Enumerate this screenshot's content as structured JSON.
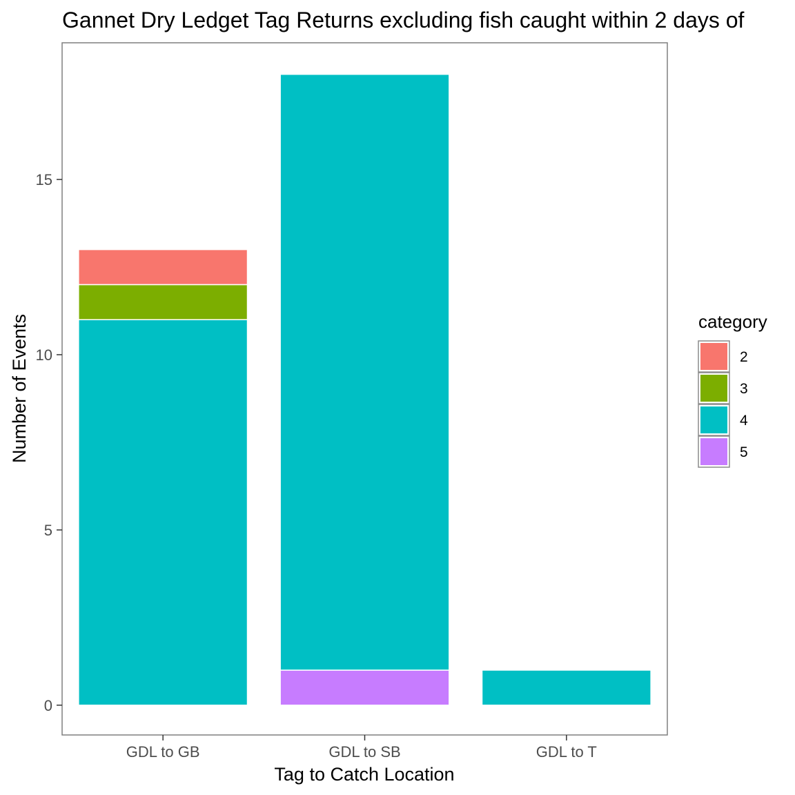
{
  "chart_data": {
    "type": "bar",
    "stacked": true,
    "title": "Gannet Dry Ledget Tag Returns excluding fish caught within 2 days of",
    "xlabel": "Tag to Catch Location",
    "ylabel": "Number of Events",
    "categories": [
      "GDL to GB",
      "GDL to SB",
      "GDL to T"
    ],
    "series": [
      {
        "name": "2",
        "color": "#F8766D",
        "values": [
          1,
          0,
          0
        ]
      },
      {
        "name": "3",
        "color": "#7CAE00",
        "values": [
          1,
          0,
          0
        ]
      },
      {
        "name": "4",
        "color": "#00BFC4",
        "values": [
          11,
          17,
          1
        ]
      },
      {
        "name": "5",
        "color": "#C77CFF",
        "values": [
          0,
          1,
          0
        ]
      }
    ],
    "ylim": [
      -0.85,
      18.9
    ],
    "yticks": [
      0,
      5,
      10,
      15
    ],
    "legend": {
      "title": "category",
      "position": "right"
    },
    "grid": false
  }
}
